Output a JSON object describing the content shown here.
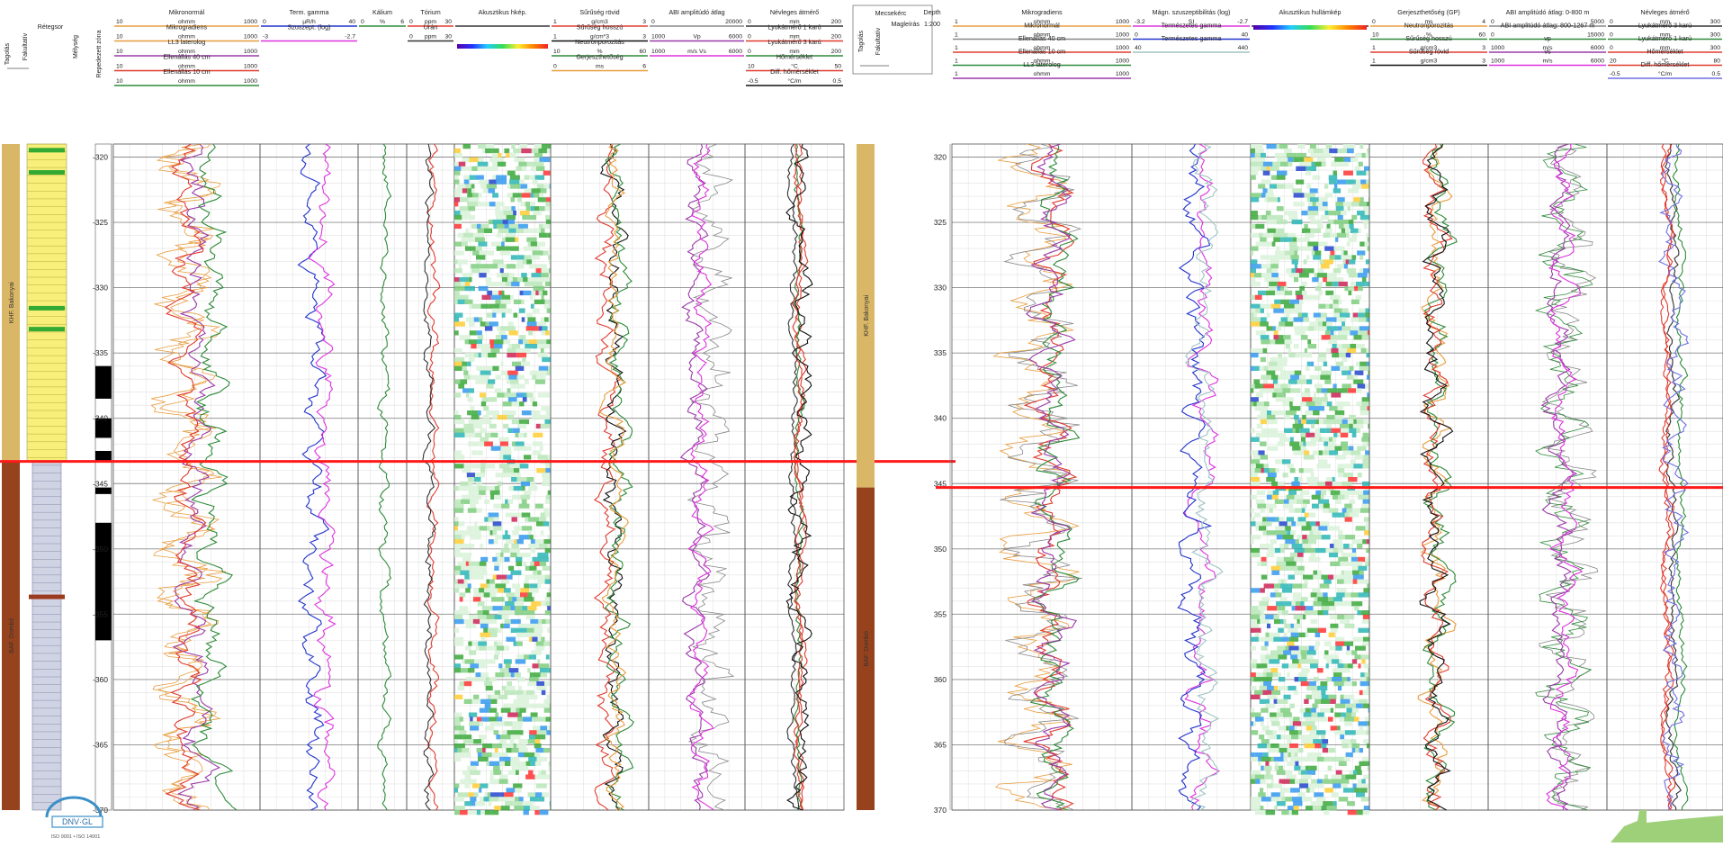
{
  "chart_data": [
    {
      "type": "well-log",
      "depth_range": [
        319,
        370
      ],
      "depth_ticks": [
        320,
        325,
        330,
        335,
        340,
        345,
        350,
        355,
        360,
        365,
        370
      ],
      "boundary_depth": 343.3,
      "strip_labels": [
        "Rétegsor",
        "Fakultatív",
        "Tagolás",
        "Mélység",
        "Repedezett zóna"
      ],
      "formations": [
        {
          "label": "KHF. Bakonyai",
          "top": 319,
          "bottom": 343.3,
          "color": "#dab766"
        },
        {
          "label": "BAF. Dombó",
          "top": 343.3,
          "bottom": 370,
          "color": "#96431d"
        }
      ],
      "fractured_zones": [
        [
          336,
          338.5
        ],
        [
          340,
          341.5
        ],
        [
          342.5,
          343.3
        ],
        [
          345.3,
          345.8
        ],
        [
          348,
          357
        ]
      ],
      "tracks": [
        {
          "header": [
            {
              "name": "Mikronormál",
              "min": "10",
              "unit": "ohmm",
              "max": "1000",
              "color": "#e89d3e"
            },
            {
              "name": "Mikrogradiens",
              "min": "10",
              "unit": "ohmm",
              "max": "1000",
              "color": "#e89d3e"
            },
            {
              "name": "LL3 laterolog",
              "min": "10",
              "unit": "ohmm",
              "max": "1000",
              "color": "#9a3aa8"
            },
            {
              "name": "Ellenállás 40 cm",
              "min": "10",
              "unit": "ohmm",
              "max": "1000",
              "color": "#e03b2f"
            },
            {
              "name": "Ellenállás 10 cm",
              "min": "10",
              "unit": "ohmm",
              "max": "1000",
              "color": "#2e8b3a"
            }
          ]
        },
        {
          "header": [
            {
              "name": "Term. gamma",
              "min": "0",
              "unit": "µR/h",
              "max": "40",
              "color": "#2233cc"
            },
            {
              "name": "Szuszept. (log)",
              "min": "-3",
              "unit": "",
              "max": "-2.7",
              "color": "#dd33dd"
            }
          ]
        },
        {
          "header": [
            {
              "name": "Kálium",
              "min": "0",
              "unit": "%",
              "max": "6",
              "color": "#2e8b3a"
            }
          ]
        },
        {
          "header": [
            {
              "name": "Tórium",
              "min": "0",
              "unit": "ppm",
              "max": "30",
              "color": "#e03b2f"
            },
            {
              "name": "Urán",
              "min": "0",
              "unit": "ppm",
              "max": "30",
              "color": "#333333"
            }
          ]
        },
        {
          "header": [
            {
              "name": "Akusztikus hkép.",
              "min": "",
              "unit": "",
              "max": "",
              "color": "#333333"
            }
          ]
        },
        {
          "header": [
            {
              "name": "Sűrűség rövid",
              "min": "1",
              "unit": "g/cm3",
              "max": "3",
              "color": "#e03b2f"
            },
            {
              "name": "Sűrűség hosszú",
              "min": "1",
              "unit": "g/cm*3",
              "max": "3",
              "color": "#111111"
            },
            {
              "name": "Neutronporozitás",
              "min": "10",
              "unit": "%",
              "max": "60",
              "color": "#2e8b3a"
            },
            {
              "name": "Gerjeszthetőség",
              "min": "0",
              "unit": "ms",
              "max": "6",
              "color": "#e89d3e"
            }
          ]
        },
        {
          "header": [
            {
              "name": "ABI amplitúdó átlag",
              "min": "0",
              "unit": "",
              "max": "20000",
              "color": "#888888"
            },
            {
              "name": "",
              "min": "1000",
              "unit": "Vp",
              "max": "6000",
              "color": "#9a3aa8"
            },
            {
              "name": "",
              "min": "1000",
              "unit": "m/s Vs",
              "max": "6000",
              "color": "#dd33dd"
            }
          ]
        },
        {
          "header": [
            {
              "name": "Névleges átmérő",
              "min": "0",
              "unit": "mm",
              "max": "200",
              "color": "#333333"
            },
            {
              "name": "Lyukátmérő 1 karú",
              "min": "0",
              "unit": "mm",
              "max": "200",
              "color": "#e03b2f"
            },
            {
              "name": "Lyukátmérő 3 karú",
              "min": "0",
              "unit": "mm",
              "max": "200",
              "color": "#2e8b3a"
            },
            {
              "name": "Hőmérséklet",
              "min": "10",
              "unit": "°C",
              "max": "50",
              "color": "#e03b2f"
            },
            {
              "name": "Diff. hőmérséklet",
              "min": "-0.5",
              "unit": "°C/m",
              "max": "0.5",
              "color": "#111111"
            }
          ]
        }
      ],
      "logo": "DNV·GL",
      "logo_sub": "ISO 9001 • ISO 14001"
    },
    {
      "type": "well-log",
      "depth_range": [
        319,
        370
      ],
      "depth_ticks": [
        320,
        325,
        330,
        335,
        340,
        345,
        350,
        355,
        360,
        365,
        370
      ],
      "boundary_depth": 345.3,
      "corner_labels": [
        "Mecsekérc",
        "Depth",
        "Magleírás",
        "1:200",
        "Fakultatív",
        "Tagolás"
      ],
      "formations": [
        {
          "label": "KHF. Bakonyai",
          "top": 319,
          "bottom": 345.3,
          "color": "#dab766"
        },
        {
          "label": "BAF. Dombó",
          "top": 345.3,
          "bottom": 370,
          "color": "#96431d"
        }
      ],
      "tracks": [
        {
          "header": [
            {
              "name": "Mikrogradiens",
              "min": "1",
              "unit": "ohmm",
              "max": "1000",
              "color": "#e89d3e"
            },
            {
              "name": "Mikronormál",
              "min": "1",
              "unit": "ohmm",
              "max": "1000",
              "color": "#888888"
            },
            {
              "name": "Ellenállás 40 cm",
              "min": "1",
              "unit": "ohmm",
              "max": "1000",
              "color": "#e03b2f"
            },
            {
              "name": "Ellenállás 10 cm",
              "min": "1",
              "unit": "ohmm",
              "max": "1000",
              "color": "#2e8b3a"
            },
            {
              "name": "LL3 laterolog",
              "min": "1",
              "unit": "ohmm",
              "max": "1000",
              "color": "#9a3aa8"
            }
          ]
        },
        {
          "header": [
            {
              "name": "Mágn. szuszeptibilitás (log)",
              "min": "-3.2",
              "unit": "SI",
              "max": "-2.7",
              "color": "#dd33dd"
            },
            {
              "name": "Természetes gamma",
              "min": "0",
              "unit": "",
              "max": "40",
              "color": "#2233cc"
            },
            {
              "name": "Természetes gamma",
              "min": "40",
              "unit": "",
              "max": "440",
              "color": "#a0c4c4"
            }
          ]
        },
        {
          "header": [
            {
              "name": "Akusztikus hullámkép",
              "min": "",
              "unit": "",
              "max": "",
              "color": "#333333"
            }
          ]
        },
        {
          "header": [
            {
              "name": "Gerjeszthetőség (GP)",
              "min": "0",
              "unit": "ms",
              "max": "4",
              "color": "#e89d3e"
            },
            {
              "name": "Neutronporozitás",
              "min": "10",
              "unit": "%",
              "max": "60",
              "color": "#2e8b3a"
            },
            {
              "name": "Sűrűség hosszú",
              "min": "1",
              "unit": "g/cm3",
              "max": "3",
              "color": "#e03b2f"
            },
            {
              "name": "Sűrűség rövid",
              "min": "1",
              "unit": "g/cm3",
              "max": "3",
              "color": "#111111"
            }
          ]
        },
        {
          "header": [
            {
              "name": "ABI amplitúdó átlag: 0-800 m",
              "min": "0",
              "unit": "",
              "max": "5000",
              "color": "#888888"
            },
            {
              "name": "ABI amplitúdó átlag: 800-1267 m",
              "min": "0",
              "unit": "",
              "max": "15000",
              "color": "#2e8b3a"
            },
            {
              "name": "vp",
              "min": "1000",
              "unit": "m/s",
              "max": "6000",
              "color": "#9a3aa8"
            },
            {
              "name": "vs",
              "min": "1000",
              "unit": "m/s",
              "max": "6000",
              "color": "#dd33dd"
            }
          ]
        },
        {
          "header": [
            {
              "name": "Névleges átmérő",
              "min": "0",
              "unit": "mm",
              "max": "300",
              "color": "#333333"
            },
            {
              "name": "Lyukátmérő 3 karú",
              "min": "0",
              "unit": "mm",
              "max": "300",
              "color": "#2e8b3a"
            },
            {
              "name": "Lyukátmérő 1 karú",
              "min": "0",
              "unit": "mm",
              "max": "300",
              "color": "#e03b2f"
            },
            {
              "name": "Hőmérséklet",
              "min": "20",
              "unit": "°C",
              "max": "80",
              "color": "#e03b2f"
            },
            {
              "name": "Diff. hőmérséklet",
              "min": "-0.5",
              "unit": "°C/m",
              "max": "0.5",
              "color": "#6f6fe0"
            }
          ]
        }
      ]
    }
  ]
}
